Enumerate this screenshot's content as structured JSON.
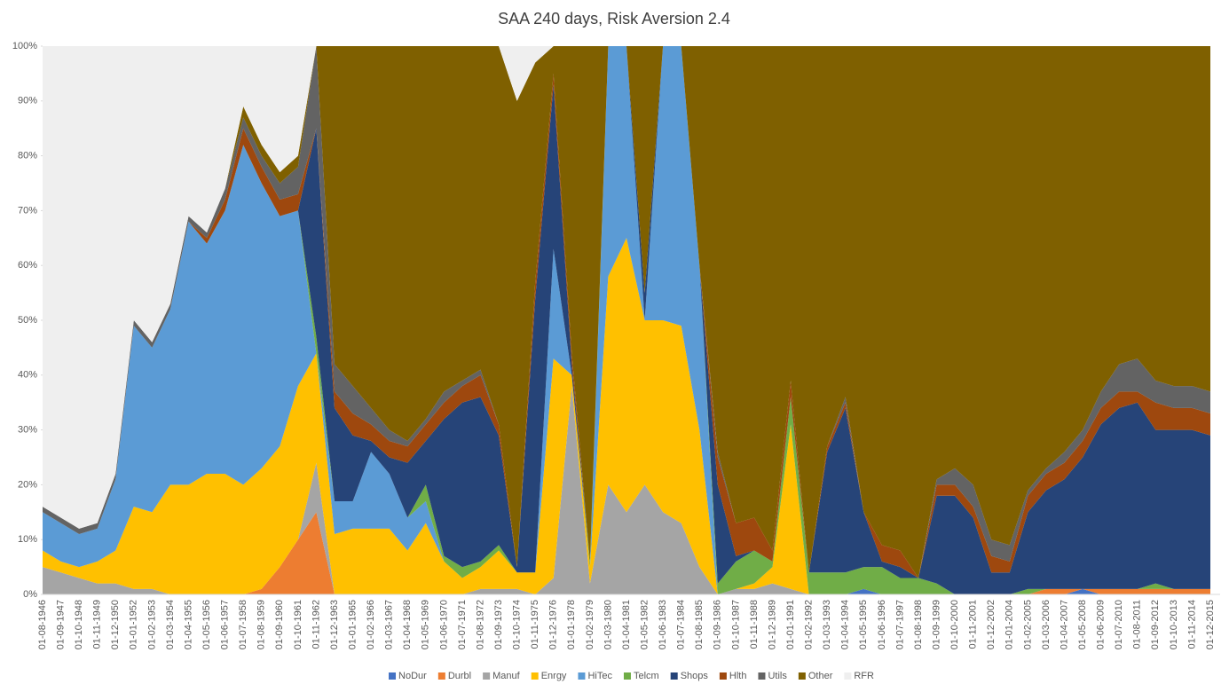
{
  "chart_data": {
    "type": "stacked-area",
    "title": "SAA 240 days, Risk Aversion 2.4",
    "categories": [
      "01-08-1946",
      "01-09-1947",
      "01-10-1948",
      "01-11-1949",
      "01-12-1950",
      "01-01-1952",
      "01-02-1953",
      "01-03-1954",
      "01-04-1955",
      "01-05-1956",
      "01-06-1957",
      "01-07-1958",
      "01-08-1959",
      "01-09-1960",
      "01-10-1961",
      "01-11-1962",
      "01-12-1963",
      "01-01-1965",
      "01-02-1966",
      "01-03-1967",
      "01-04-1968",
      "01-05-1969",
      "01-06-1970",
      "01-07-1971",
      "01-08-1972",
      "01-09-1973",
      "01-10-1974",
      "01-11-1975",
      "01-12-1976",
      "01-01-1978",
      "01-02-1979",
      "01-03-1980",
      "01-04-1981",
      "01-05-1982",
      "01-06-1983",
      "01-07-1984",
      "01-08-1985",
      "01-09-1986",
      "01-10-1987",
      "01-11-1988",
      "01-12-1989",
      "01-01-1991",
      "01-02-1992",
      "01-03-1993",
      "01-04-1994",
      "01-05-1995",
      "01-06-1996",
      "01-07-1997",
      "01-08-1998",
      "01-09-1999",
      "01-10-2000",
      "01-11-2001",
      "01-12-2002",
      "01-01-2004",
      "01-02-2005",
      "01-03-2006",
      "01-04-2007",
      "01-05-2008",
      "01-06-2009",
      "01-07-2010",
      "01-08-2011",
      "01-09-2012",
      "01-10-2013",
      "01-11-2014",
      "01-12-2015"
    ],
    "series": [
      {
        "name": "NoDur",
        "color": "#4472c4",
        "values": [
          0,
          0,
          0,
          0,
          0,
          0,
          0,
          0,
          0,
          0,
          0,
          0,
          0,
          0,
          0,
          0,
          0,
          0,
          0,
          0,
          0,
          0,
          0,
          0,
          0,
          0,
          0,
          0,
          0,
          0,
          0,
          0,
          0,
          0,
          0,
          0,
          0,
          0,
          0,
          0,
          0,
          0,
          0,
          0,
          0,
          1,
          0,
          0,
          0,
          0,
          0,
          0,
          0,
          0,
          0,
          0,
          0,
          1,
          0,
          0,
          0,
          0,
          0,
          0,
          0
        ]
      },
      {
        "name": "Durbl",
        "color": "#ed7d31",
        "values": [
          0,
          0,
          0,
          0,
          0,
          0,
          0,
          0,
          0,
          0,
          0,
          0,
          1,
          5,
          10,
          15,
          0,
          0,
          0,
          0,
          0,
          0,
          0,
          0,
          0,
          0,
          0,
          0,
          0,
          0,
          0,
          0,
          0,
          0,
          0,
          0,
          0,
          0,
          0,
          0,
          0,
          0,
          0,
          0,
          0,
          0,
          0,
          0,
          0,
          0,
          0,
          0,
          0,
          0,
          0,
          1,
          1,
          0,
          1,
          1,
          1,
          1,
          1,
          1,
          1
        ]
      },
      {
        "name": "Manuf",
        "color": "#a5a5a5",
        "values": [
          5,
          4,
          3,
          2,
          2,
          1,
          1,
          0,
          0,
          0,
          0,
          0,
          0,
          0,
          0,
          9,
          0,
          0,
          0,
          0,
          0,
          0,
          0,
          0,
          1,
          1,
          1,
          0,
          3,
          38,
          2,
          20,
          15,
          20,
          15,
          13,
          5,
          0,
          1,
          1,
          2,
          1,
          0,
          0,
          0,
          0,
          0,
          0,
          0,
          0,
          0,
          0,
          0,
          0,
          0,
          0,
          0,
          0,
          0,
          0,
          0,
          0,
          0,
          0,
          0
        ]
      },
      {
        "name": "Enrgy",
        "color": "#ffc000",
        "values": [
          3,
          2,
          2,
          4,
          6,
          15,
          14,
          20,
          20,
          22,
          22,
          20,
          22,
          22,
          28,
          20,
          11,
          12,
          12,
          12,
          8,
          13,
          6,
          3,
          4,
          7,
          3,
          4,
          40,
          2,
          3,
          38,
          50,
          30,
          35,
          36,
          25,
          0,
          0,
          1,
          3,
          30,
          0,
          0,
          0,
          0,
          0,
          0,
          0,
          0,
          0,
          0,
          0,
          0,
          0,
          0,
          0,
          0,
          0,
          0,
          0,
          0,
          0,
          0,
          0
        ]
      },
      {
        "name": "HiTec",
        "color": "#5b9bd5",
        "values": [
          7,
          7,
          6,
          6,
          13,
          33,
          30,
          32,
          48,
          42,
          48,
          62,
          52,
          42,
          32,
          0,
          6,
          5,
          14,
          10,
          6,
          4,
          0,
          0,
          0,
          0,
          0,
          0,
          20,
          0,
          0,
          42,
          35,
          0,
          50,
          51,
          30,
          0,
          0,
          0,
          0,
          0,
          0,
          0,
          0,
          0,
          0,
          0,
          0,
          0,
          0,
          0,
          0,
          0,
          0,
          0,
          0,
          0,
          0,
          0,
          0,
          0,
          0,
          0,
          0
        ]
      },
      {
        "name": "Telcm",
        "color": "#70ad47",
        "values": [
          0,
          0,
          0,
          0,
          0,
          0,
          0,
          0,
          0,
          0,
          0,
          0,
          0,
          0,
          0,
          3,
          0,
          0,
          0,
          0,
          0,
          3,
          1,
          2,
          1,
          1,
          0,
          0,
          0,
          0,
          1,
          0,
          0,
          0,
          0,
          0,
          0,
          2,
          5,
          6,
          1,
          5,
          4,
          4,
          4,
          4,
          5,
          3,
          3,
          2,
          0,
          0,
          0,
          0,
          1,
          0,
          0,
          0,
          0,
          0,
          0,
          1,
          0,
          0,
          0
        ]
      },
      {
        "name": "Shops",
        "color": "#264478",
        "values": [
          0,
          0,
          0,
          0,
          0,
          0,
          0,
          0,
          0,
          0,
          0,
          0,
          0,
          0,
          0,
          38,
          17,
          12,
          2,
          3,
          10,
          8,
          25,
          30,
          30,
          20,
          1,
          50,
          30,
          2,
          0,
          0,
          0,
          5,
          0,
          0,
          0,
          18,
          1,
          0,
          0,
          0,
          0,
          22,
          30,
          10,
          1,
          2,
          0,
          16,
          18,
          14,
          4,
          4,
          14,
          18,
          20,
          24,
          30,
          33,
          34,
          28,
          29,
          29,
          28
        ]
      },
      {
        "name": "Hlth",
        "color": "#9e480e",
        "values": [
          0,
          0,
          0,
          0,
          0,
          0,
          0,
          0,
          0,
          1,
          2,
          3,
          3,
          3,
          3,
          0,
          3,
          4,
          3,
          3,
          3,
          3,
          3,
          3,
          4,
          2,
          0,
          3,
          2,
          2,
          0,
          0,
          0,
          0,
          0,
          0,
          0,
          5,
          6,
          6,
          2,
          3,
          0,
          1,
          1,
          0,
          3,
          3,
          0,
          2,
          2,
          2,
          3,
          2,
          3,
          3,
          3,
          3,
          3,
          3,
          2,
          5,
          4,
          4,
          4
        ]
      },
      {
        "name": "Utils",
        "color": "#636363",
        "values": [
          1,
          1,
          1,
          1,
          1,
          1,
          1,
          1,
          1,
          1,
          2,
          2,
          2,
          3,
          5,
          15,
          5,
          5,
          3,
          2,
          1,
          1,
          2,
          1,
          1,
          0,
          0,
          0,
          0,
          0,
          0,
          0,
          0,
          0,
          0,
          0,
          0,
          1,
          0,
          0,
          0,
          0,
          0,
          0,
          1,
          0,
          0,
          0,
          0,
          1,
          3,
          4,
          3,
          3,
          1,
          1,
          2,
          2,
          3,
          5,
          6,
          4,
          4,
          4,
          4
        ]
      },
      {
        "name": "Other",
        "color": "#7f6000",
        "values": [
          0,
          0,
          0,
          0,
          0,
          0,
          0,
          0,
          0,
          0,
          0,
          2,
          2,
          2,
          2,
          0,
          58,
          62,
          66,
          70,
          72,
          68,
          63,
          61,
          59,
          69,
          85,
          40,
          5,
          56,
          94,
          0,
          0,
          45,
          0,
          0,
          40,
          74,
          87,
          86,
          92,
          61,
          96,
          73,
          64,
          85,
          91,
          92,
          97,
          79,
          77,
          80,
          90,
          91,
          81,
          77,
          74,
          70,
          63,
          58,
          57,
          61,
          62,
          62,
          63
        ]
      },
      {
        "name": "RFR",
        "color": "#efefef",
        "values": [
          84,
          86,
          88,
          87,
          78,
          50,
          54,
          47,
          31,
          34,
          26,
          11,
          18,
          23,
          20,
          0,
          0,
          0,
          0,
          0,
          0,
          0,
          0,
          0,
          0,
          0,
          10,
          3,
          0,
          0,
          0,
          0,
          0,
          0,
          0,
          0,
          0,
          0,
          0,
          0,
          0,
          0,
          0,
          0,
          0,
          0,
          0,
          0,
          0,
          0,
          0,
          0,
          0,
          0,
          0,
          0,
          0,
          0,
          0,
          0,
          0,
          0,
          0,
          0,
          0
        ]
      }
    ],
    "ylim": [
      0,
      100
    ],
    "yticks": [
      {
        "value": 0,
        "label": "0%"
      },
      {
        "value": 10,
        "label": "10%"
      },
      {
        "value": 20,
        "label": "20%"
      },
      {
        "value": 30,
        "label": "30%"
      },
      {
        "value": 40,
        "label": "40%"
      },
      {
        "value": 50,
        "label": "50%"
      },
      {
        "value": 60,
        "label": "60%"
      },
      {
        "value": 70,
        "label": "70%"
      },
      {
        "value": 80,
        "label": "80%"
      },
      {
        "value": 90,
        "label": "90%"
      },
      {
        "value": 100,
        "label": "100%"
      }
    ],
    "legend": "bottom"
  }
}
